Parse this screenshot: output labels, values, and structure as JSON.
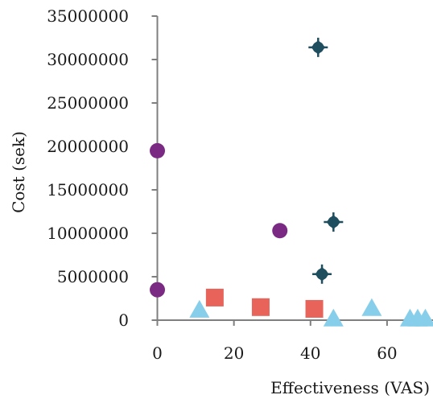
{
  "chart_data": {
    "type": "scatter",
    "xlabel": "Effectiveness (VAS)",
    "ylabel": "Cost (sek)",
    "xlim": [
      -2,
      72
    ],
    "ylim": [
      0,
      35000000
    ],
    "x_ticks": [
      0,
      20,
      40,
      60
    ],
    "x_tick_labels": [
      "0",
      "20",
      "40",
      "60"
    ],
    "y_ticks": [
      0,
      5000000,
      10000000,
      15000000,
      20000000,
      25000000,
      30000000,
      35000000
    ],
    "y_tick_labels": [
      "0",
      "5000000",
      "10000000",
      "15000000",
      "20000000",
      "25000000",
      "30000000",
      "35000000"
    ],
    "grid": false,
    "legend": "none",
    "series": [
      {
        "marker": "diamond-cross",
        "color": "#1f4e5f",
        "points": [
          [
            42,
            31400000
          ],
          [
            46,
            11300000
          ],
          [
            43,
            5300000
          ]
        ]
      },
      {
        "marker": "circle",
        "color": "#7b2a83",
        "points": [
          [
            0,
            19500000
          ],
          [
            32,
            10300000
          ],
          [
            0,
            3500000
          ]
        ]
      },
      {
        "marker": "square",
        "color": "#e8645a",
        "points": [
          [
            15,
            2600000
          ],
          [
            27,
            1500000
          ],
          [
            41,
            1300000
          ]
        ]
      },
      {
        "marker": "triangle",
        "color": "#87ceeb",
        "points": [
          [
            11,
            1100000
          ],
          [
            46,
            100000
          ],
          [
            56,
            1300000
          ],
          [
            66,
            100000
          ],
          [
            68,
            100000
          ],
          [
            70,
            100000
          ]
        ]
      }
    ]
  }
}
